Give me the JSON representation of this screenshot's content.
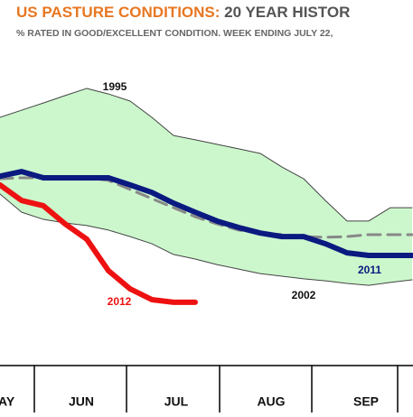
{
  "chart_data": {
    "type": "line",
    "title": "US PASTURE CONDITIONS:",
    "title_rest": " 20 YEAR HISTOR",
    "subtitle": "% RATED IN GOOD/EXCELLENT CONDITION. WEEK ENDING JULY 22,",
    "x": [
      0,
      1,
      2,
      3,
      4,
      5,
      6,
      7,
      8,
      9,
      10,
      11,
      12,
      13,
      14,
      15,
      16,
      17,
      18,
      19
    ],
    "xlim": [
      0,
      19
    ],
    "ylim": [
      0,
      100
    ],
    "months": [
      "AY",
      "JUN",
      "JUL",
      "AUG",
      "SEP"
    ],
    "band": {
      "color": "#ccf7cc",
      "edge": "#444"
    },
    "series": [
      {
        "name": "1995",
        "role": "band-top",
        "color": "#444",
        "values": [
          75,
          77.2,
          79.4,
          81.7,
          83.9,
          82.2,
          80,
          75,
          69.4,
          68.1,
          66.7,
          65.3,
          63.9,
          59.7,
          56.1,
          49.4,
          43.1,
          43.1,
          47.2,
          47.2
        ]
      },
      {
        "name": "2002",
        "role": "band-bottom",
        "color": "#444",
        "values": [
          51.4,
          45.8,
          43.6,
          42.5,
          41.7,
          40.3,
          38.3,
          36.1,
          32.8,
          31.4,
          29.7,
          28.3,
          26.9,
          26.1,
          25.3,
          24.7,
          23.9,
          23.3,
          24.2,
          25
        ]
      },
      {
        "role": "average",
        "color": "#888",
        "dashed": true,
        "values": [
          56.1,
          56.4,
          56.4,
          56.4,
          56.4,
          55.6,
          52.8,
          50,
          47.2,
          44.4,
          42.2,
          40.3,
          39.4,
          38.9,
          38.3,
          38.1,
          38.3,
          38.9,
          38.9,
          38.9
        ]
      },
      {
        "name": "2011",
        "color": "#0a1a80",
        "values": [
          56.9,
          58.3,
          56.4,
          56.4,
          56.4,
          56.4,
          54.2,
          51.9,
          48.6,
          45.8,
          43.1,
          41.1,
          39.4,
          38.3,
          38.3,
          36.1,
          33.3,
          32.5,
          32.5,
          32.5
        ]
      },
      {
        "name": "2012",
        "color": "#ee1111",
        "values": [
          54.2,
          49.4,
          47.8,
          42.2,
          37.5,
          27.8,
          22.2,
          18.9,
          18.1,
          18.1,
          null,
          null,
          null,
          null,
          null,
          null,
          null,
          null,
          null,
          null
        ]
      }
    ]
  }
}
